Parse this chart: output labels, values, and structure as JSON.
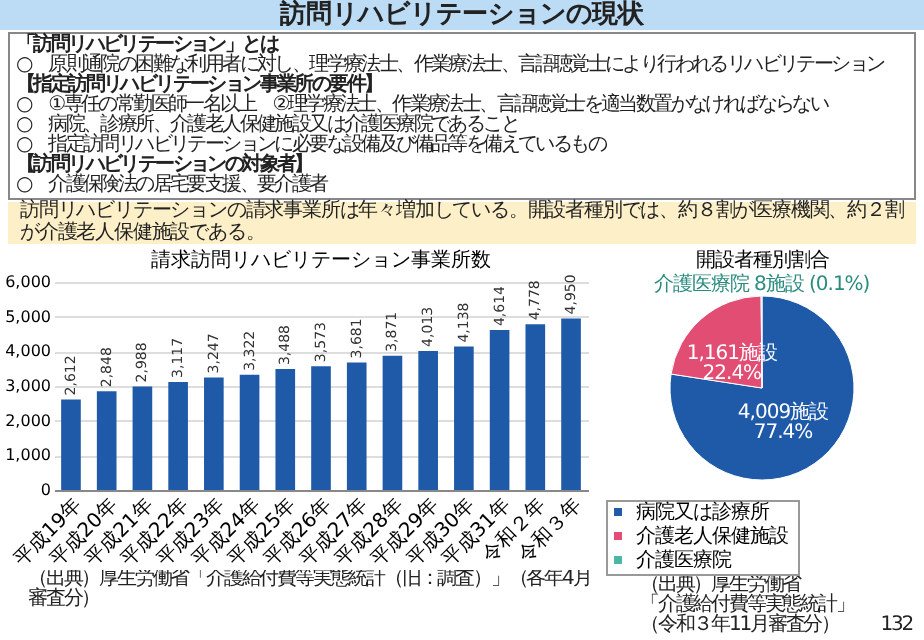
{
  "chart_data": [
    {
      "type": "bar",
      "title": "請求訪問リハビリテーション事業所数",
      "categories": [
        "平成19年",
        "平成20年",
        "平成21年",
        "平成22年",
        "平成23年",
        "平成24年",
        "平成25年",
        "平成26年",
        "平成27年",
        "平成28年",
        "平成29年",
        "平成30年",
        "平成31年",
        "令和２年",
        "令和３年"
      ],
      "values": [
        2612,
        2848,
        2988,
        3117,
        3247,
        3322,
        3488,
        3573,
        3681,
        3871,
        4013,
        4138,
        4614,
        4778,
        4950
      ],
      "color": "#1f5aa8",
      "grid": "y",
      "value_labels": [
        "2,612",
        "2,848",
        "2,988",
        "3,117",
        "3,247",
        "3,322",
        "3,488",
        "3,573",
        "3,681",
        "3,871",
        "4,013",
        "4,138",
        "4,614",
        "4,778",
        "4,950"
      ],
      "ylim": [
        0,
        6000
      ],
      "yticks": [
        0,
        {
          "value": 1000,
          "label": "1,000"
        },
        {
          "value": 2000,
          "label": "2,000"
        },
        {
          "value": 3000,
          "label": "3,000"
        },
        {
          "value": 4000,
          "label": "4,000"
        },
        {
          "value": 5000,
          "label": "5,000"
        },
        {
          "value": 6000,
          "label": "6,000"
        }
      ],
      "annotations": [
        "訪問リハビリテーションの現状",
        "「訪問リハビリテーション」とは",
        "○　原則通院の困難な利用者に対し、理学療法士、作業療法士、言語聴覚士により行われるリハビリテーション",
        "【指定訪問リハビリテーション事業所の要件】",
        "○　①専任の常勤医師一名以上　②理学療法士、作業療法士、言語聴覚士を適当数置かなければならない",
        "○　病院、診療所、介護老人保健施設又は介護医療院であること",
        "○　指定訪問リハビリテーションに必要な設備及び備品等を備えているもの",
        "【訪問リハビリテーションの対象者】",
        "○　介護保険法の居宅要支援、要介護者",
        "訪問リハビリテーションの請求事業所は年々増加している。開設者種別では、約８割が医療機関、約２割が介護老人保健施設である。",
        "（出典）厚生労働省「介護給付費等実態統計（旧：調査）」（各年4月審査分）"
      ]
    },
    {
      "type": "pie",
      "title": "開設者種別割合",
      "categories": [
        "病院又は診療所",
        "介護老人保健施設",
        "介護医療院"
      ],
      "values": [
        4009,
        1161,
        8
      ],
      "colors": [
        "#1f5aa8",
        "#e24d73",
        "#4cb6a6"
      ],
      "value_labels": [
        "4,009施設\n77.4%",
        "1,161施設\n22.4%",
        "介護医療院\n8施設\n(0.1%)"
      ],
      "legend": "bottom",
      "annotations": [
        "（出典）厚生労働省",
        "「介護給付費等実態統計」",
        "（令和３年11月審査分）",
        "132"
      ]
    }
  ]
}
